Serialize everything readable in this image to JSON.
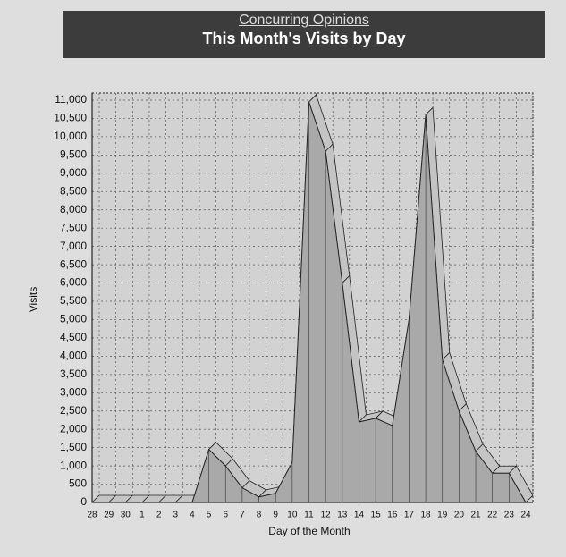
{
  "header": {
    "link": "Concurring Opinions"
  },
  "chart_data": {
    "type": "area3d",
    "title": "This Month's Visits by Day",
    "x_label": "Day of the Month",
    "y_label": "Visits",
    "categories": [
      "28",
      "29",
      "30",
      "1",
      "2",
      "3",
      "4",
      "5",
      "6",
      "7",
      "8",
      "9",
      "10",
      "11",
      "12",
      "13",
      "14",
      "15",
      "16",
      "17",
      "18",
      "19",
      "20",
      "21",
      "22",
      "23",
      "24"
    ],
    "values": [
      0,
      0,
      0,
      0,
      0,
      0,
      0,
      1450,
      1000,
      400,
      150,
      250,
      1100,
      10950,
      9600,
      6000,
      2200,
      2300,
      2100,
      5000,
      10600,
      3900,
      2500,
      1400,
      800,
      800,
      0
    ],
    "color": "#a9a9a9",
    "top_color": "#c4c4c4",
    "ylim": [
      0,
      11000
    ],
    "yticks": [
      0,
      500,
      {
        "value": 1000,
        "label": "1,000"
      },
      {
        "value": 1500,
        "label": "1,500"
      },
      {
        "value": 2000,
        "label": "2,000"
      },
      {
        "value": 2500,
        "label": "2,500"
      },
      {
        "value": 3000,
        "label": "3,000"
      },
      {
        "value": 3500,
        "label": "3,500"
      },
      {
        "value": 4000,
        "label": "4,000"
      },
      {
        "value": 4500,
        "label": "4,500"
      },
      {
        "value": 5000,
        "label": "5,000"
      },
      {
        "value": 5500,
        "label": "5,500"
      },
      {
        "value": 6000,
        "label": "6,000"
      },
      {
        "value": 6500,
        "label": "6,500"
      },
      {
        "value": 7000,
        "label": "7,000"
      },
      {
        "value": 7500,
        "label": "7,500"
      },
      {
        "value": 8000,
        "label": "8,000"
      },
      {
        "value": 8500,
        "label": "8,500"
      },
      {
        "value": 9000,
        "label": "9,000"
      },
      {
        "value": 9500,
        "label": "9,500"
      },
      {
        "value": 10000,
        "label": "10,000"
      },
      {
        "value": 10500,
        "label": "10,500"
      },
      {
        "value": 11000,
        "label": "11,000"
      }
    ],
    "grid": true
  }
}
